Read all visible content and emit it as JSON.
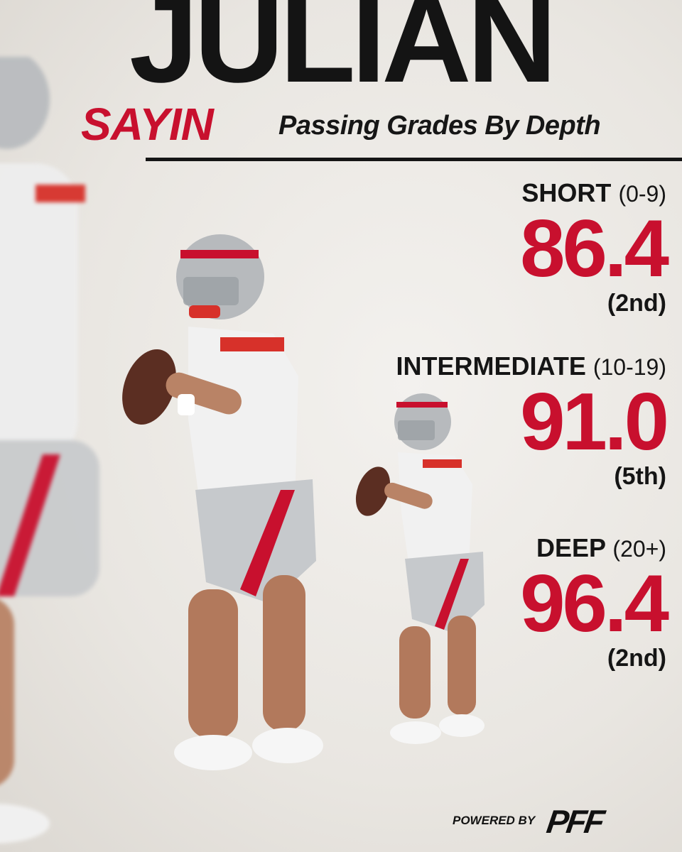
{
  "header": {
    "first_name": "JULIAN",
    "last_name": "SAYIN",
    "subtitle": "Passing Grades By Depth"
  },
  "stats": [
    {
      "label": "SHORT",
      "range": "(0-9)",
      "grade": "86.4",
      "rank": "(2nd)"
    },
    {
      "label": "INTERMEDIATE",
      "range": "(10-19)",
      "grade": "91.0",
      "rank": "(5th)"
    },
    {
      "label": "DEEP",
      "range": "(20+)",
      "grade": "96.4",
      "rank": "(2nd)"
    }
  ],
  "footer": {
    "powered_by": "POWERED BY",
    "logo_text": "PFF"
  },
  "colors": {
    "accent_red": "#c8102e",
    "text_dark": "#151515",
    "background": "#ece9e4"
  },
  "icons": {
    "player_large": "quarterback-figure",
    "player_small": "quarterback-figure",
    "player_blurred": "quarterback-figure"
  }
}
